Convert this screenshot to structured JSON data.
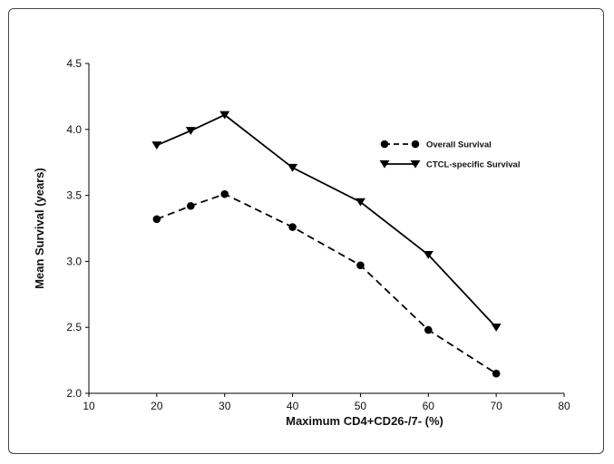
{
  "chart_data": {
    "type": "line",
    "xlabel": "Maximum  CD4+CD26-/7-  (%)",
    "ylabel": "Mean Survival  (years)",
    "xlim": [
      10,
      80
    ],
    "ylim": [
      2.0,
      4.5
    ],
    "x_ticks": [
      "10",
      "20",
      "30",
      "40",
      "50",
      "60",
      "70",
      "80"
    ],
    "y_ticks": [
      "2.0",
      "2.5",
      "3.0",
      "3.5",
      "4.0",
      "4.5"
    ],
    "grid": false,
    "legend_position": "right",
    "x": [
      20,
      25,
      30,
      40,
      50,
      60,
      70
    ],
    "series": [
      {
        "name": "Overall Survival",
        "values": [
          3.32,
          3.42,
          3.51,
          3.26,
          2.97,
          2.48,
          2.15
        ],
        "line_style": "dashed",
        "marker": "circle",
        "color": "#000000"
      },
      {
        "name": "CTCL-specific Survival",
        "values": [
          3.88,
          3.99,
          4.11,
          3.71,
          3.45,
          3.05,
          2.5
        ],
        "line_style": "solid",
        "marker": "triangle-down",
        "color": "#000000"
      }
    ]
  }
}
